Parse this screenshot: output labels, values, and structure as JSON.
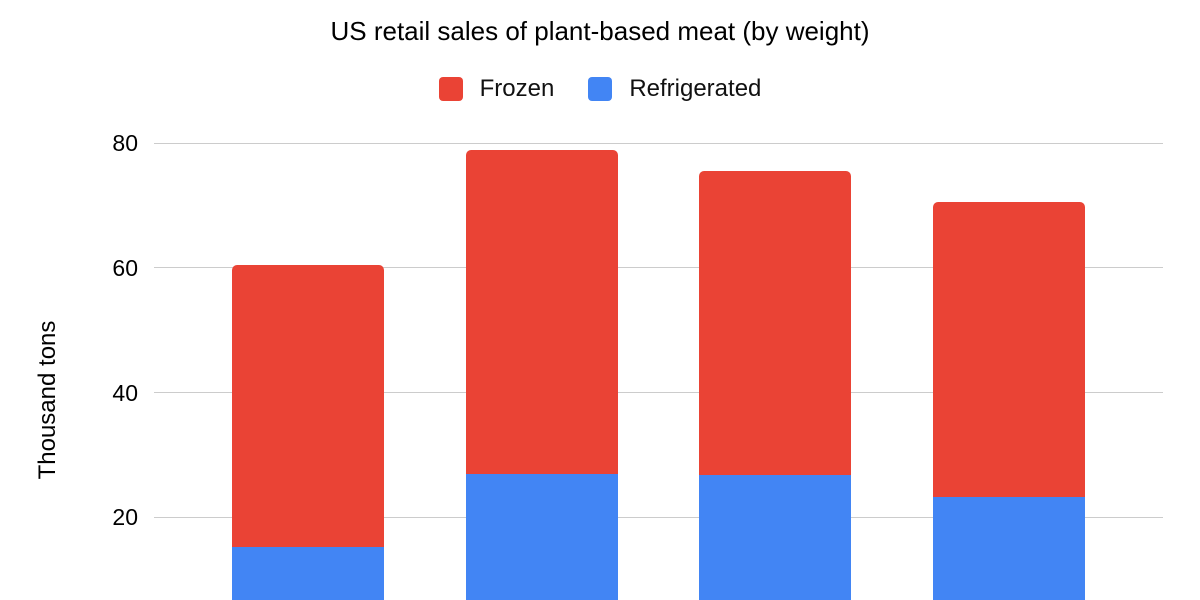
{
  "chart_data": {
    "type": "bar",
    "stacked": true,
    "title": "US retail sales of plant-based meat (by weight)",
    "ylabel": "Thousand tons",
    "xlabel": "",
    "ylim": [
      0,
      80
    ],
    "y_ticks": [
      20,
      40,
      60,
      80
    ],
    "grid": true,
    "legend_position": "top",
    "x_axis_labels_visible": false,
    "categories": [
      "",
      "",
      "",
      ""
    ],
    "series": [
      {
        "name": "Frozen",
        "color": "#EA4335",
        "values": [
          45.3,
          52.0,
          48.8,
          47.2
        ]
      },
      {
        "name": "Refrigerated",
        "color": "#4285F4",
        "values": [
          15.2,
          26.9,
          26.7,
          23.3
        ]
      }
    ],
    "totals": [
      60.5,
      78.9,
      75.5,
      70.5
    ]
  },
  "colors": {
    "background": "#ffffff",
    "gridline": "#cccccc",
    "text": "#000000"
  }
}
